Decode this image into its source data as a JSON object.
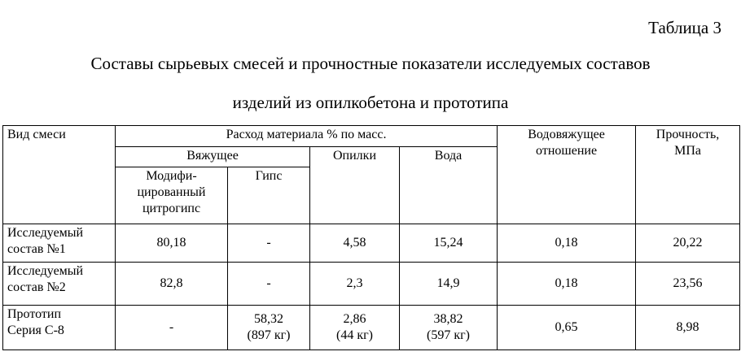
{
  "caption": "Таблица 3",
  "title_line1": "Составы сырьевых смесей и прочностные показатели исследуемых составов",
  "title_line2": "изделий из опилкобетона и прототипа",
  "table": {
    "headers": {
      "mix_type": "Вид смеси",
      "consumption": "Расход материала % по масс.",
      "binder": "Вяжущее",
      "modified_1": "Модифи-",
      "modified_2": "цированный",
      "modified_3": "цитрогипс",
      "gypsum": "Гипс",
      "sawdust": "Опилки",
      "water": "Вода",
      "wb_ratio_1": "Водовяжущее",
      "wb_ratio_2": "отношение",
      "strength_1": "Прочность,",
      "strength_2": "МПа"
    },
    "rows": [
      {
        "name1": "Исследуемый",
        "name2": "состав №1",
        "citrogypsum": "80,18",
        "gypsum": "-",
        "sawdust": "4,58",
        "sawdust_kg": "",
        "water": "15,24",
        "water_kg": "",
        "gypsum_kg": "",
        "wb": "0,18",
        "strength": "20,22"
      },
      {
        "name1": "Исследуемый",
        "name2": "состав №2",
        "citrogypsum": "82,8",
        "gypsum": "-",
        "sawdust": "2,3",
        "sawdust_kg": "",
        "water": "14,9",
        "water_kg": "",
        "gypsum_kg": "",
        "wb": "0,18",
        "strength": "23,56"
      },
      {
        "name1": "Прототип",
        "name2": "Серия С-8",
        "citrogypsum": "-",
        "gypsum": "58,32",
        "gypsum_kg": "(897 кг)",
        "sawdust": "2,86",
        "sawdust_kg": "(44 кг)",
        "water": "38,82",
        "water_kg": "(597 кг)",
        "wb": "0,65",
        "strength": "8,98"
      }
    ]
  }
}
